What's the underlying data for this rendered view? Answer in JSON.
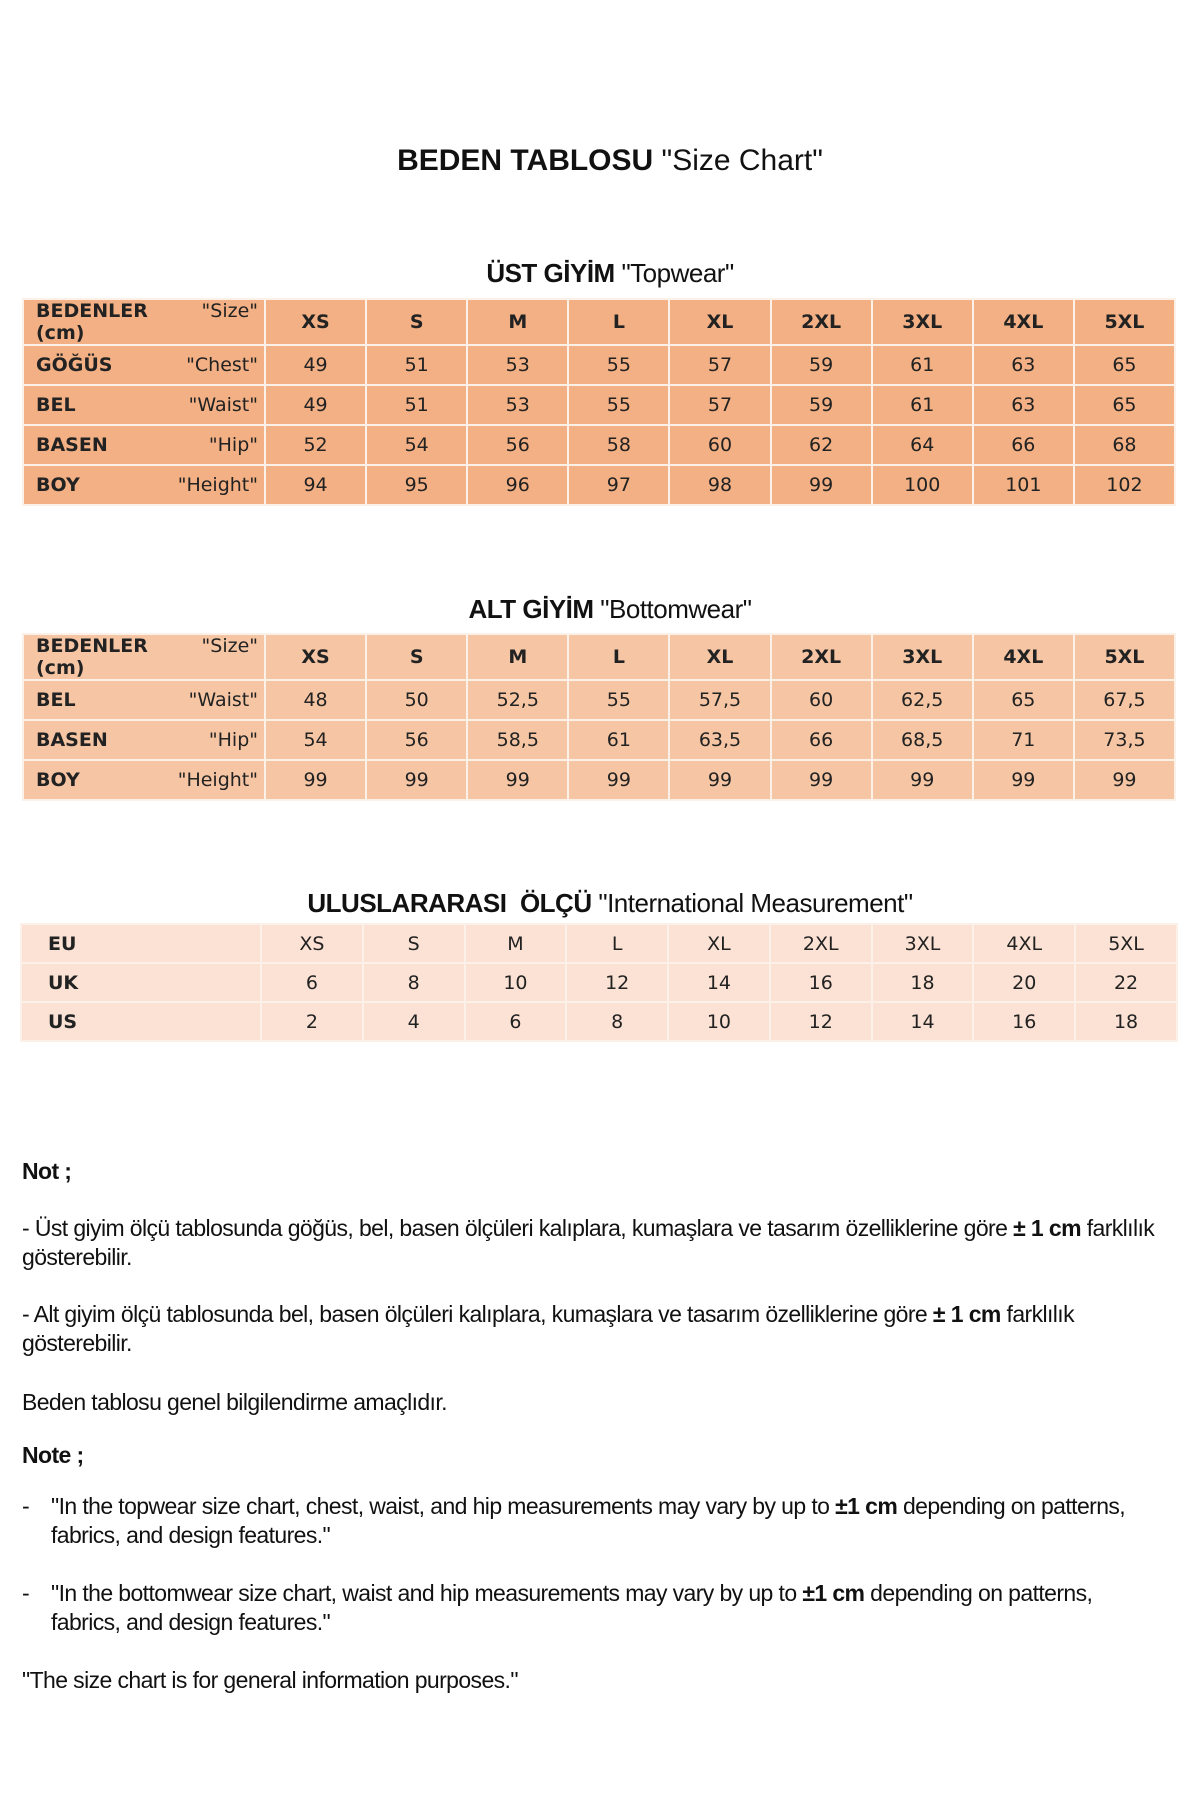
{
  "title": {
    "bold": "BEDEN TABLOSU",
    "normal": "\"Size Chart\""
  },
  "sizes": [
    "XS",
    "S",
    "M",
    "L",
    "XL",
    "2XL",
    "3XL",
    "4XL",
    "5XL"
  ],
  "topwear": {
    "heading_bold": "ÜST GİYİM",
    "heading_normal": "\"Topwear\"",
    "header": {
      "tr": "BEDENLER (cm)",
      "en": "\"Size\""
    },
    "rows": [
      {
        "tr": "GÖĞÜS",
        "en": "\"Chest\"",
        "values": [
          "49",
          "51",
          "53",
          "55",
          "57",
          "59",
          "61",
          "63",
          "65"
        ]
      },
      {
        "tr": "BEL",
        "en": "\"Waist\"",
        "values": [
          "49",
          "51",
          "53",
          "55",
          "57",
          "59",
          "61",
          "63",
          "65"
        ]
      },
      {
        "tr": "BASEN",
        "en": "\"Hip\"",
        "values": [
          "52",
          "54",
          "56",
          "58",
          "60",
          "62",
          "64",
          "66",
          "68"
        ]
      },
      {
        "tr": "BOY",
        "en": "\"Height\"",
        "values": [
          "94",
          "95",
          "96",
          "97",
          "98",
          "99",
          "100",
          "101",
          "102"
        ]
      }
    ],
    "color": "#f2b084"
  },
  "bottomwear": {
    "heading_bold": "ALT GİYİM",
    "heading_normal": "\"Bottomwear\"",
    "header": {
      "tr": "BEDENLER (cm)",
      "en": "\"Size\""
    },
    "rows": [
      {
        "tr": "BEL",
        "en": "\"Waist\"",
        "values": [
          "48",
          "50",
          "52,5",
          "55",
          "57,5",
          "60",
          "62,5",
          "65",
          "67,5"
        ]
      },
      {
        "tr": "BASEN",
        "en": "\"Hip\"",
        "values": [
          "54",
          "56",
          "58,5",
          "61",
          "63,5",
          "66",
          "68,5",
          "71",
          "73,5"
        ]
      },
      {
        "tr": "BOY",
        "en": "\"Height\"",
        "values": [
          "99",
          "99",
          "99",
          "99",
          "99",
          "99",
          "99",
          "99",
          "99"
        ]
      }
    ],
    "color": "#f6c6a4"
  },
  "international": {
    "heading_bold": "ULUSLARARASI  ÖLÇÜ",
    "heading_normal": "\"International Measurement\"",
    "rows": [
      {
        "label": "EU",
        "values": [
          "XS",
          "S",
          "M",
          "L",
          "XL",
          "2XL",
          "3XL",
          "4XL",
          "5XL"
        ]
      },
      {
        "label": "UK",
        "values": [
          "6",
          "8",
          "10",
          "12",
          "14",
          "16",
          "18",
          "20",
          "22"
        ]
      },
      {
        "label": "US",
        "values": [
          "2",
          "4",
          "6",
          "8",
          "10",
          "12",
          "14",
          "16",
          "18"
        ]
      }
    ],
    "color": "#fbe2d4"
  },
  "notes_tr": {
    "heading": "Not ;",
    "p1_text": "- Üst giyim ölçü tablosunda göğüs, bel, basen ölçüleri kalıplara, kumaşlara ve tasarım özelliklerine göre ",
    "p1_bold": "± 1 cm",
    "p1_end": " farklılık gösterebilir.",
    "p2_text": "- Alt giyim ölçü tablosunda bel, basen ölçüleri kalıplara, kumaşlara ve tasarım özelliklerine göre ",
    "p2_bold": "± 1 cm",
    "p2_end": " farklılık gösterebilir.",
    "p3": "Beden tablosu genel bilgilendirme amaçlıdır."
  },
  "notes_en": {
    "heading": "Note ;",
    "bullet": "-",
    "b1_text": "\"In the topwear size chart, chest, waist, and hip measurements may vary by up to ",
    "b1_bold": "±1 cm",
    "b1_end": " depending on patterns, fabrics, and design features.\"",
    "b2_text": "\"In the bottomwear size chart, waist and hip measurements may vary by up to ",
    "b2_bold": "±1 cm",
    "b2_end": " depending on patterns, fabrics, and design features.\"",
    "p3": "\"The size chart is for general information purposes.\""
  }
}
